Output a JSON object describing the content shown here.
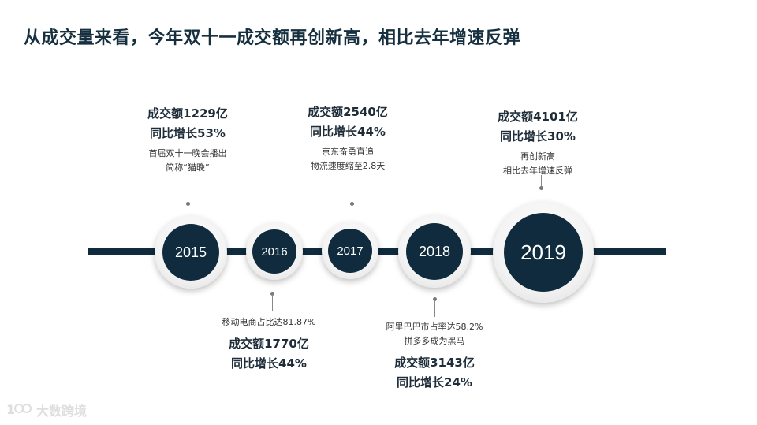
{
  "title": "从成交量来看，今年双十一成交额再创新高，相比去年增速反弹",
  "colors": {
    "accent": "#0f2b3d",
    "text": "#1f2d3a"
  },
  "years": [
    {
      "year": "2015",
      "amount": "成交额1229亿",
      "growth": "同比增长53%",
      "note1": "首届双十一晚会播出",
      "note2": "简称“猫晚”"
    },
    {
      "year": "2016",
      "amount": "成交额1770亿",
      "growth": "同比增长44%",
      "note1": "移动电商占比达81.87%"
    },
    {
      "year": "2017",
      "amount": "成交额2540亿",
      "growth": "同比增长44%",
      "note1": "京东奋勇直追",
      "note2": "物流速度缩至2.8天"
    },
    {
      "year": "2018",
      "amount": "成交额3143亿",
      "growth": "同比增长24%",
      "note1": "阿里巴巴市占率达58.2%",
      "note2": "拼多多成为黑马"
    },
    {
      "year": "2019",
      "amount": "成交额4101亿",
      "growth": "同比增长30%",
      "note1": "再创新高",
      "note2": "相比去年增速反弹"
    }
  ],
  "logo": {
    "text": "大数跨境",
    "icon": "logo-icon"
  }
}
